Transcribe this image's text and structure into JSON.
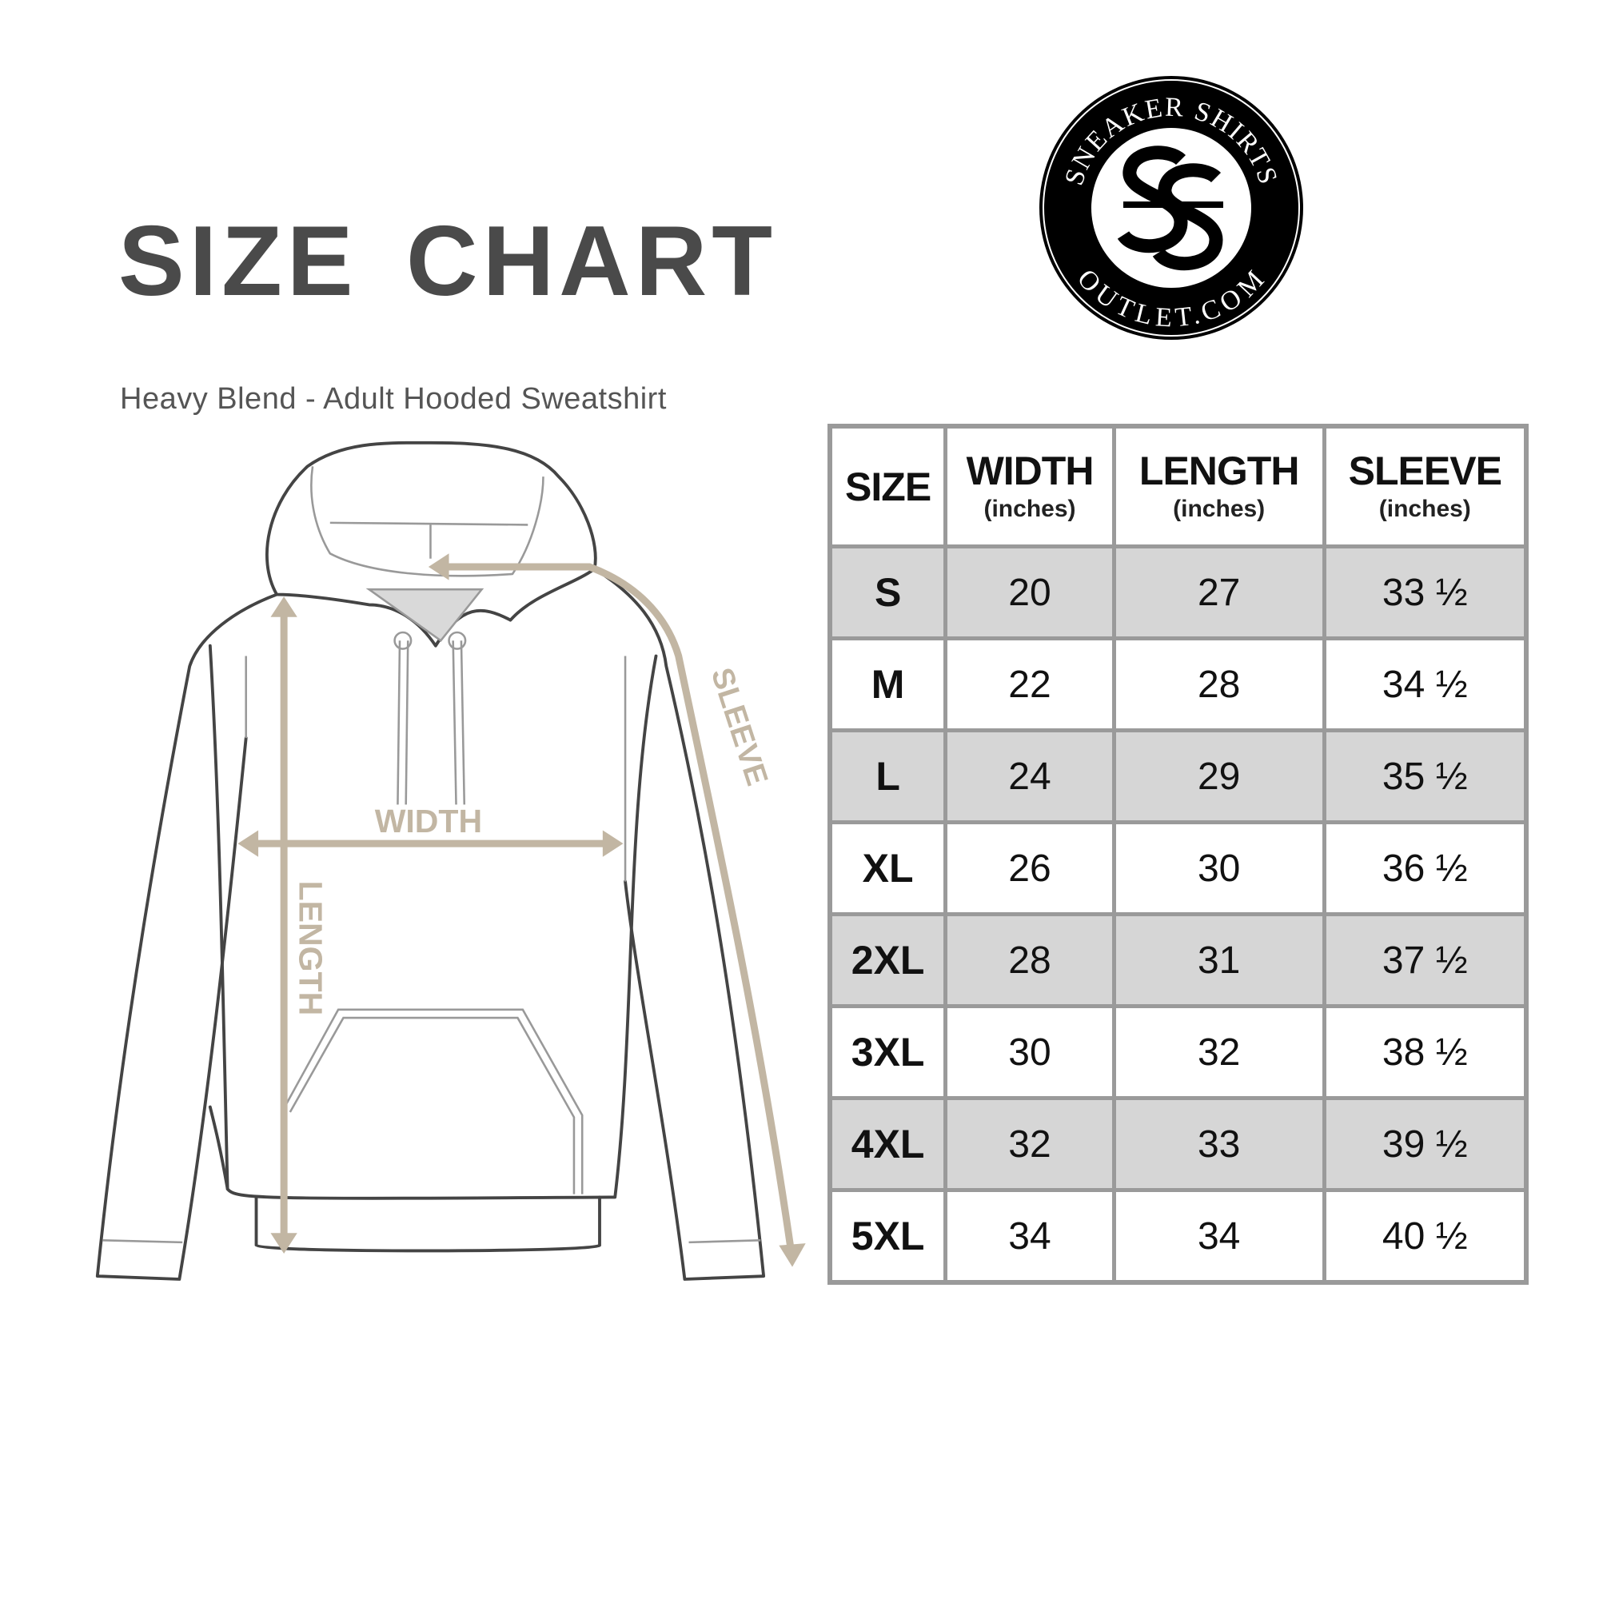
{
  "header": {
    "title": "SIZE CHART",
    "subtitle": "Heavy Blend - Adult Hooded Sweatshirt"
  },
  "logo": {
    "top_text": "SNEAKER SHIRTS",
    "bottom_text": "OUTLET.COM",
    "monogram": "SS"
  },
  "diagram": {
    "labels": {
      "width": "WIDTH",
      "length": "LENGTH",
      "sleeve": "SLEEVE"
    },
    "arrow_color": "#c2b6a3"
  },
  "table": {
    "columns": [
      {
        "title": "SIZE",
        "unit": ""
      },
      {
        "title": "WIDTH",
        "unit": "(inches)"
      },
      {
        "title": "LENGTH",
        "unit": "(inches)"
      },
      {
        "title": "SLEEVE",
        "unit": "(inches)"
      }
    ],
    "rows": [
      [
        "S",
        "20",
        "27",
        "33 ½"
      ],
      [
        "M",
        "22",
        "28",
        "34 ½"
      ],
      [
        "L",
        "24",
        "29",
        "35 ½"
      ],
      [
        "XL",
        "26",
        "30",
        "36 ½"
      ],
      [
        "2XL",
        "28",
        "31",
        "37 ½"
      ],
      [
        "3XL",
        "30",
        "32",
        "38 ½"
      ],
      [
        "4XL",
        "32",
        "33",
        "39 ½"
      ],
      [
        "5XL",
        "34",
        "34",
        "40 ½"
      ]
    ],
    "stripe_color": "#d6d6d6",
    "border_color": "#9a9a9a"
  }
}
